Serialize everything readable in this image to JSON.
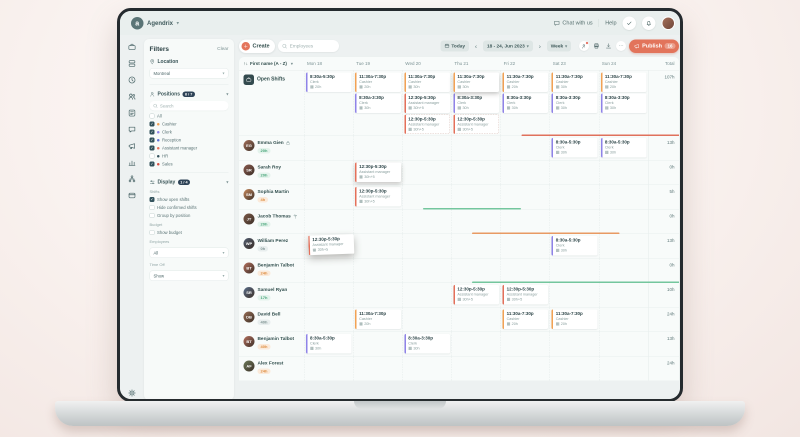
{
  "topbar": {
    "logo_letter": "a",
    "brand": "Agendrix",
    "chat": "Chat with us",
    "help": "Help"
  },
  "rail": {
    "items": [
      "requests",
      "schedules",
      "time-clock",
      "employees",
      "forms",
      "messages",
      "announcements",
      "reports",
      "org-chart",
      "billing"
    ],
    "bottom": "settings"
  },
  "filters": {
    "title": "Filters",
    "clear": "Clear",
    "location": {
      "label": "Location",
      "value": "Montreal"
    },
    "positions": {
      "label": "Positions",
      "badge": "6 / 7",
      "search_placeholder": "Search",
      "options": [
        {
          "label": "All",
          "checked": false,
          "dot": null
        },
        {
          "label": "Cashier",
          "checked": true,
          "dot": "#f2a254"
        },
        {
          "label": "Clerk",
          "checked": true,
          "dot": "#8f83e8"
        },
        {
          "label": "Reception",
          "checked": true,
          "dot": "#5d6fd6"
        },
        {
          "label": "Assistant manager",
          "checked": true,
          "dot": "#e4705a"
        },
        {
          "label": "HR",
          "checked": false,
          "dot": "#33525c"
        },
        {
          "label": "Sales",
          "checked": true,
          "dot": "#d94f43"
        }
      ]
    },
    "display": {
      "label": "Display",
      "badge": "1 / 4",
      "shifts_label": "Shifts",
      "options": [
        {
          "label": "Show open shifts",
          "checked": true
        },
        {
          "label": "Hide confirmed shifts",
          "checked": false
        },
        {
          "label": "Group by position",
          "checked": false
        }
      ],
      "budget_label": "Budget",
      "budget_option": {
        "label": "Show budget",
        "checked": false
      },
      "employees_label": "Employees",
      "employees_value": "All",
      "timeoff_label": "Time Off",
      "timeoff_value": "Show"
    }
  },
  "toolbar": {
    "create": "Create",
    "search_placeholder": "Employees",
    "today": "Today",
    "date_range": "18 - 24, Jun 2023",
    "view": "Week",
    "publish": "Publish",
    "publish_count": "16"
  },
  "schedule": {
    "sort_label": "First name (A - Z)",
    "days": [
      "Mon 18",
      "Tue 19",
      "Wed 20",
      "Thu 21",
      "Fri 22",
      "Sat 23",
      "Sun 24"
    ],
    "total_label": "Total",
    "role_colors": {
      "Cashier": "#f2a254",
      "Clerk": "#8f83e8",
      "Assistant manager": "#e4705a"
    },
    "rows": [
      {
        "type": "open",
        "name": "Open Shifts",
        "total": "107h",
        "cells": [
          [
            {
              "slot": 0,
              "time": "8:30a-5:30p",
              "role": "Clerk",
              "hours": "20h",
              "variant": "solid"
            }
          ],
          [
            {
              "slot": 0,
              "time": "11:30a-7:30p",
              "role": "Cashier",
              "hours": "20h",
              "variant": "solid"
            },
            {
              "slot": 1,
              "time": "8:30a-3:30p",
              "role": "Clerk",
              "hours": "30h",
              "variant": "solid"
            }
          ],
          [
            {
              "slot": 0,
              "time": "11:30a-7:30p",
              "role": "Cashier",
              "hours": "30h",
              "variant": "solid"
            },
            {
              "slot": 1,
              "time": "12:30p-5:30p",
              "role": "Assistant manager",
              "hours": "30h+5",
              "variant": "solid"
            },
            {
              "slot": 2,
              "time": "12:30p-5:30p",
              "role": "Assistant manager",
              "hours": "30h+5",
              "variant": "ghost"
            }
          ],
          [
            {
              "slot": 0,
              "time": "11:30a-7:30p",
              "role": "Cashier",
              "hours": "30h",
              "variant": "white"
            },
            {
              "slot": 1,
              "time": "8:30a-3:30p",
              "role": "Clerk",
              "hours": "30h",
              "variant": "solid"
            },
            {
              "slot": 2,
              "time": "12:30p-5:30p",
              "role": "Assistant manager",
              "hours": "30h+5",
              "variant": "ghost"
            }
          ],
          [
            {
              "slot": 0,
              "time": "11:30a-7:30p",
              "role": "Cashier",
              "hours": "20h",
              "variant": "solid"
            },
            {
              "slot": 1,
              "time": "8:30a-3:30p",
              "role": "Clerk",
              "hours": "30h",
              "variant": "solid"
            }
          ],
          [
            {
              "slot": 0,
              "time": "11:30a-7:30p",
              "role": "Cashier",
              "hours": "30h",
              "variant": "solid"
            },
            {
              "slot": 1,
              "time": "8:30a-3:30p",
              "role": "Clerk",
              "hours": "30h",
              "variant": "solid"
            }
          ],
          [
            {
              "slot": 0,
              "time": "11:30a-7:30p",
              "role": "Cashier",
              "hours": "20h",
              "variant": "solid"
            },
            {
              "slot": 1,
              "time": "8:30a-3:30p",
              "role": "Clerk",
              "hours": "30h",
              "variant": "solid"
            }
          ]
        ]
      },
      {
        "type": "employee",
        "name": "Emma Gien",
        "name_icon": "lock",
        "badge": "20h",
        "badge_style": "green",
        "avatar": "EG",
        "avatar_color": "#a5705a",
        "total": "13h",
        "cells": [
          [],
          [],
          [],
          [],
          [],
          [
            {
              "slot": 0,
              "time": "8:30a-5:30p",
              "role": "Clerk",
              "hours": "30h",
              "variant": "solid"
            }
          ],
          [
            {
              "slot": 0,
              "time": "8:30a-5:30p",
              "role": "Clerk",
              "hours": "30h",
              "variant": "solid"
            }
          ]
        ]
      },
      {
        "type": "employee",
        "name": "Sarah Roy",
        "badge": "20h",
        "badge_style": "green",
        "avatar": "SR",
        "avatar_color": "#8a5a4e",
        "total": "0h",
        "cells": [
          [],
          [
            {
              "slot": 0,
              "time": "12:30p-5:30p",
              "role": "Assistant manager",
              "hours": "30h+5",
              "variant": "white"
            }
          ],
          [],
          [],
          [],
          [],
          []
        ]
      },
      {
        "type": "employee",
        "name": "Sophia Martin",
        "badge": "4h",
        "badge_style": "orange",
        "avatar": "SM",
        "avatar_color": "#c98a5e",
        "total": "5h",
        "cells": [
          [],
          [
            {
              "slot": 0,
              "time": "12:30p-5:30p",
              "role": "Assistant manager",
              "hours": "30h+5",
              "variant": "solid"
            }
          ],
          [],
          [],
          [],
          [],
          []
        ]
      },
      {
        "type": "employee",
        "name": "Jacob Thomas",
        "name_icon": "palm",
        "badge": "20h",
        "badge_style": "green",
        "avatar": "JT",
        "avatar_color": "#7d5a48",
        "total": "0h",
        "cells": [
          [],
          [],
          [],
          [],
          [],
          [],
          []
        ]
      },
      {
        "type": "employee",
        "name": "William Perez",
        "badge": "0h",
        "badge_style": "gray",
        "avatar": "WP",
        "avatar_color": "#4e5a6e",
        "total": "13h",
        "cells": [
          [
            {
              "slot": 0,
              "time": "12:30p-5:30p",
              "role": "Assistant manager",
              "hours": "30h+5",
              "variant": "drag"
            }
          ],
          [],
          [],
          [],
          [],
          [
            {
              "slot": 0,
              "time": "8:30a-5:30p",
              "role": "Clerk",
              "hours": "30h",
              "variant": "solid"
            }
          ],
          []
        ]
      },
      {
        "type": "employee",
        "name": "Benjamin Talbot",
        "badge": "24h",
        "badge_style": "orange",
        "avatar": "BT",
        "avatar_color": "#b5705e",
        "total": "0h",
        "cells": [
          [],
          [],
          [],
          [],
          [],
          [],
          []
        ]
      },
      {
        "type": "employee",
        "name": "Samuel Ryan",
        "badge": "17h",
        "badge_style": "green",
        "avatar": "SR",
        "avatar_color": "#5a6e8a",
        "total": "10h",
        "cells": [
          [],
          [],
          [],
          [
            {
              "slot": 0,
              "time": "12:30p-5:30p",
              "role": "Assistant manager",
              "hours": "30h+5",
              "variant": "solid"
            }
          ],
          [
            {
              "slot": 0,
              "time": "12:30p-5:30p",
              "role": "Assistant manager",
              "hours": "30h+5",
              "variant": "solid"
            }
          ],
          [],
          []
        ]
      },
      {
        "type": "employee",
        "name": "David Bell",
        "badge": "40h",
        "badge_style": "gray",
        "avatar": "DB",
        "avatar_color": "#9a6e55",
        "total": "24h",
        "cells": [
          [],
          [
            {
              "slot": 0,
              "time": "11:30a-7:30p",
              "role": "Cashier",
              "hours": "20h",
              "variant": "solid"
            }
          ],
          [],
          [],
          [
            {
              "slot": 0,
              "time": "11:30a-7:30p",
              "role": "Cashier",
              "hours": "20h",
              "variant": "solid"
            }
          ],
          [
            {
              "slot": 0,
              "time": "11:30a-7:30p",
              "role": "Cashier",
              "hours": "20h",
              "variant": "solid"
            }
          ],
          []
        ]
      },
      {
        "type": "employee",
        "name": "Benjamin Talbot",
        "badge": "40h",
        "badge_style": "orange",
        "avatar": "BT",
        "avatar_color": "#b5705e",
        "total": "13h",
        "cells": [
          [
            {
              "slot": 0,
              "time": "8:30a-5:30p",
              "role": "Clerk",
              "hours": "30h",
              "variant": "solid"
            }
          ],
          [],
          [
            {
              "slot": 0,
              "time": "8:30a-3:30p",
              "role": "Clerk",
              "hours": "30h",
              "variant": "solid"
            }
          ],
          [],
          [],
          [],
          []
        ]
      },
      {
        "type": "employee",
        "name": "Alex Forest",
        "badge": "24h",
        "badge_style": "orange",
        "avatar": "AF",
        "avatar_color": "#6e7a5a",
        "total": "24h",
        "cells": [
          [],
          [],
          [],
          [],
          [],
          [],
          []
        ]
      }
    ],
    "indicators": [
      {
        "row": 1,
        "from": 2,
        "to": 6,
        "color": "#e0715c"
      },
      {
        "row": 4,
        "from": 0,
        "to": 1,
        "color": "#74c69d"
      },
      {
        "row": 5,
        "from": 1,
        "to": 3,
        "color": "#e89a63"
      },
      {
        "row": 7,
        "from": 1,
        "to": 6,
        "color": "#74c69d"
      }
    ]
  }
}
